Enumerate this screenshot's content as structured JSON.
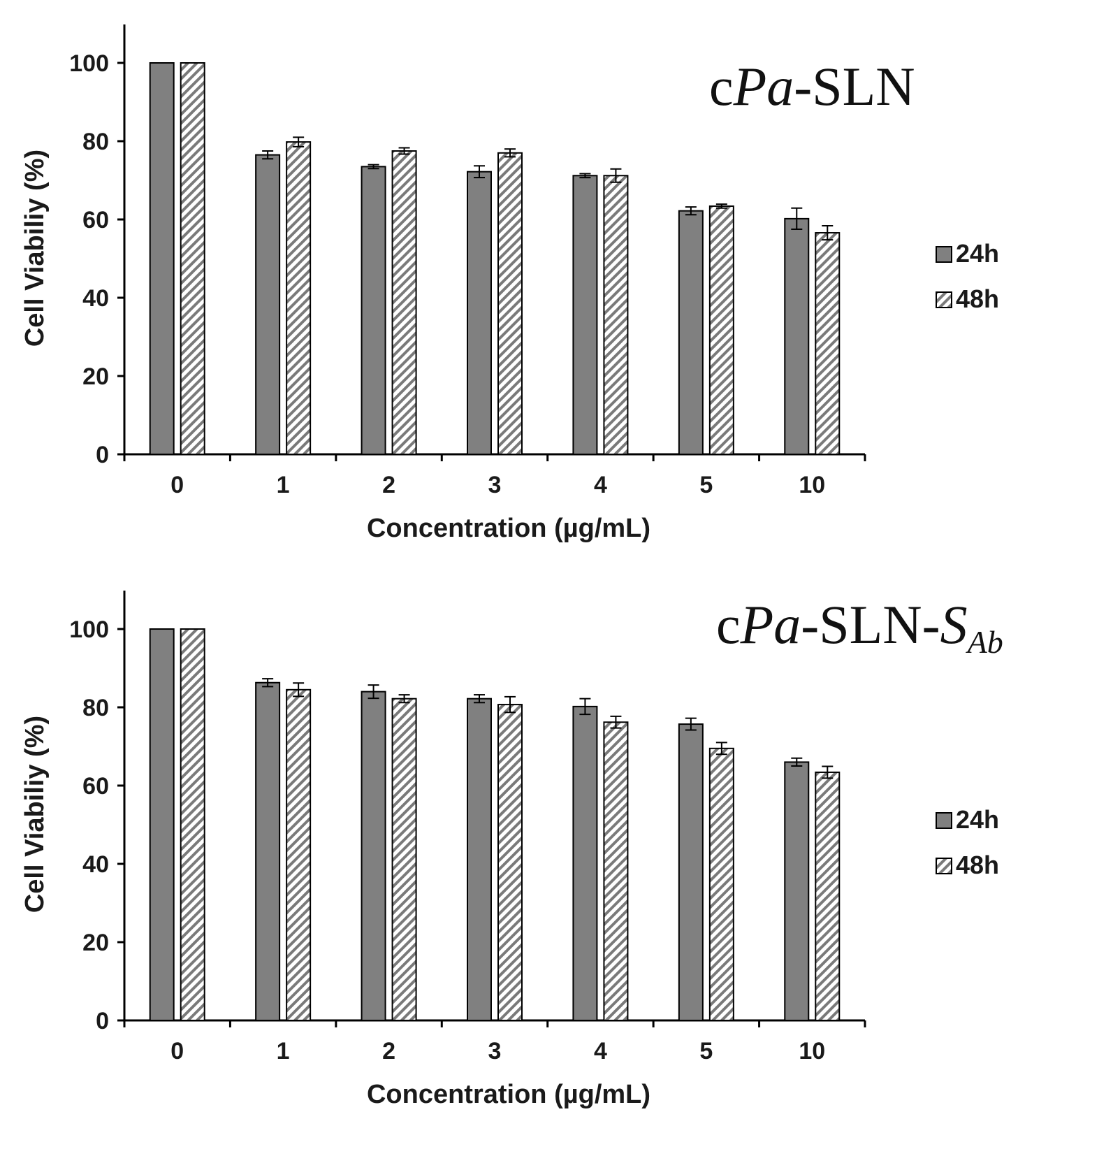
{
  "colors": {
    "bar_24h": "#808080",
    "bar_48h_fg": "#7a7a7a",
    "bar_48h_bg": "#ffffff",
    "axis": "#000000"
  },
  "chart_data": [
    {
      "type": "bar",
      "title": {
        "prefix": "c",
        "italic": "Pa",
        "suffix": "-SLN",
        "sub": ""
      },
      "xlabel": "Concentration (µg/mL)",
      "ylabel": "Cell Viabiliy (%)",
      "ylim": [
        0,
        110
      ],
      "yticks": [
        0,
        20,
        40,
        60,
        80,
        100
      ],
      "categories": [
        "0",
        "1",
        "2",
        "3",
        "4",
        "5",
        "10"
      ],
      "legend": "right",
      "series": [
        {
          "name": "24h",
          "values": [
            100,
            76.5,
            73.5,
            72.2,
            71.2,
            62.2,
            60.2
          ],
          "errors": [
            0,
            1.0,
            0.5,
            1.5,
            0.5,
            1.0,
            2.7
          ]
        },
        {
          "name": "48h",
          "values": [
            100,
            79.8,
            77.5,
            77.0,
            71.2,
            63.4,
            56.6
          ],
          "errors": [
            0,
            1.2,
            0.8,
            1.0,
            1.7,
            0.5,
            1.8
          ]
        }
      ]
    },
    {
      "type": "bar",
      "title": {
        "prefix": "c",
        "italic": "Pa",
        "suffix": "-SLN-",
        "sub_main": "S",
        "sub": "Ab"
      },
      "xlabel": "Concentration (µg/mL)",
      "ylabel": "Cell Viabiliy (%)",
      "ylim": [
        0,
        110
      ],
      "yticks": [
        0,
        20,
        40,
        60,
        80,
        100
      ],
      "categories": [
        "0",
        "1",
        "2",
        "3",
        "4",
        "5",
        "10"
      ],
      "legend": "right",
      "series": [
        {
          "name": "24h",
          "values": [
            100,
            86.3,
            84.0,
            82.2,
            80.2,
            75.7,
            66.0
          ],
          "errors": [
            0,
            1.0,
            1.7,
            1.0,
            2.0,
            1.5,
            1.0
          ]
        },
        {
          "name": "48h",
          "values": [
            100,
            84.5,
            82.2,
            80.7,
            76.2,
            69.5,
            63.4
          ],
          "errors": [
            0,
            1.7,
            1.0,
            2.0,
            1.5,
            1.5,
            1.5
          ]
        }
      ]
    }
  ]
}
